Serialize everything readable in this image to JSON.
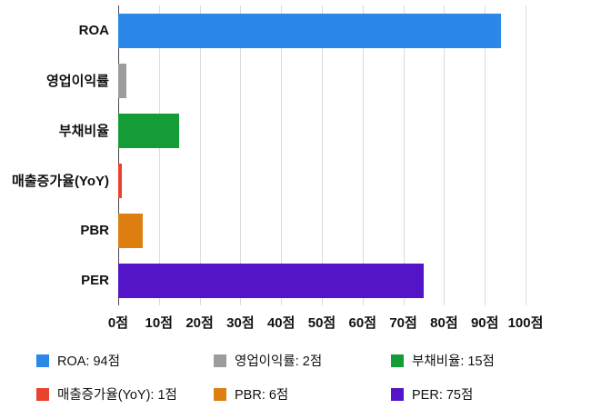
{
  "chart_data": {
    "type": "bar",
    "orientation": "horizontal",
    "title": "",
    "categories": [
      "ROA",
      "영업이익률",
      "부채비율",
      "매출증가율(YoY)",
      "PBR",
      "PER"
    ],
    "values": [
      94,
      2,
      15,
      1,
      6,
      75
    ],
    "unit": "점",
    "colors": [
      "#2b87e8",
      "#9c9c9c",
      "#169c36",
      "#e9422d",
      "#dc7f10",
      "#5415c8"
    ],
    "keys": [
      "roa",
      "operating-margin",
      "debt-ratio",
      "revenue-growth-yoy",
      "pbr",
      "per"
    ],
    "xlim": [
      0,
      100
    ],
    "x_ticks": [
      "0점",
      "10점",
      "20점",
      "30점",
      "40점",
      "50점",
      "60점",
      "70점",
      "80점",
      "90점",
      "100점"
    ],
    "grid": "vertical",
    "legend_position": "bottom"
  },
  "legend": {
    "items": [
      {
        "key": "roa",
        "label": "ROA: 94점",
        "color": "#2b87e8"
      },
      {
        "key": "operating-margin",
        "label": "영업이익률: 2점",
        "color": "#9c9c9c"
      },
      {
        "key": "debt-ratio",
        "label": "부채비율: 15점",
        "color": "#169c36"
      },
      {
        "key": "revenue-growth-yoy",
        "label": "매출증가율(YoY): 1점",
        "color": "#e9422d"
      },
      {
        "key": "pbr",
        "label": "PBR: 6점",
        "color": "#dc7f10"
      },
      {
        "key": "per",
        "label": "PER: 75점",
        "color": "#5415c8"
      }
    ]
  }
}
